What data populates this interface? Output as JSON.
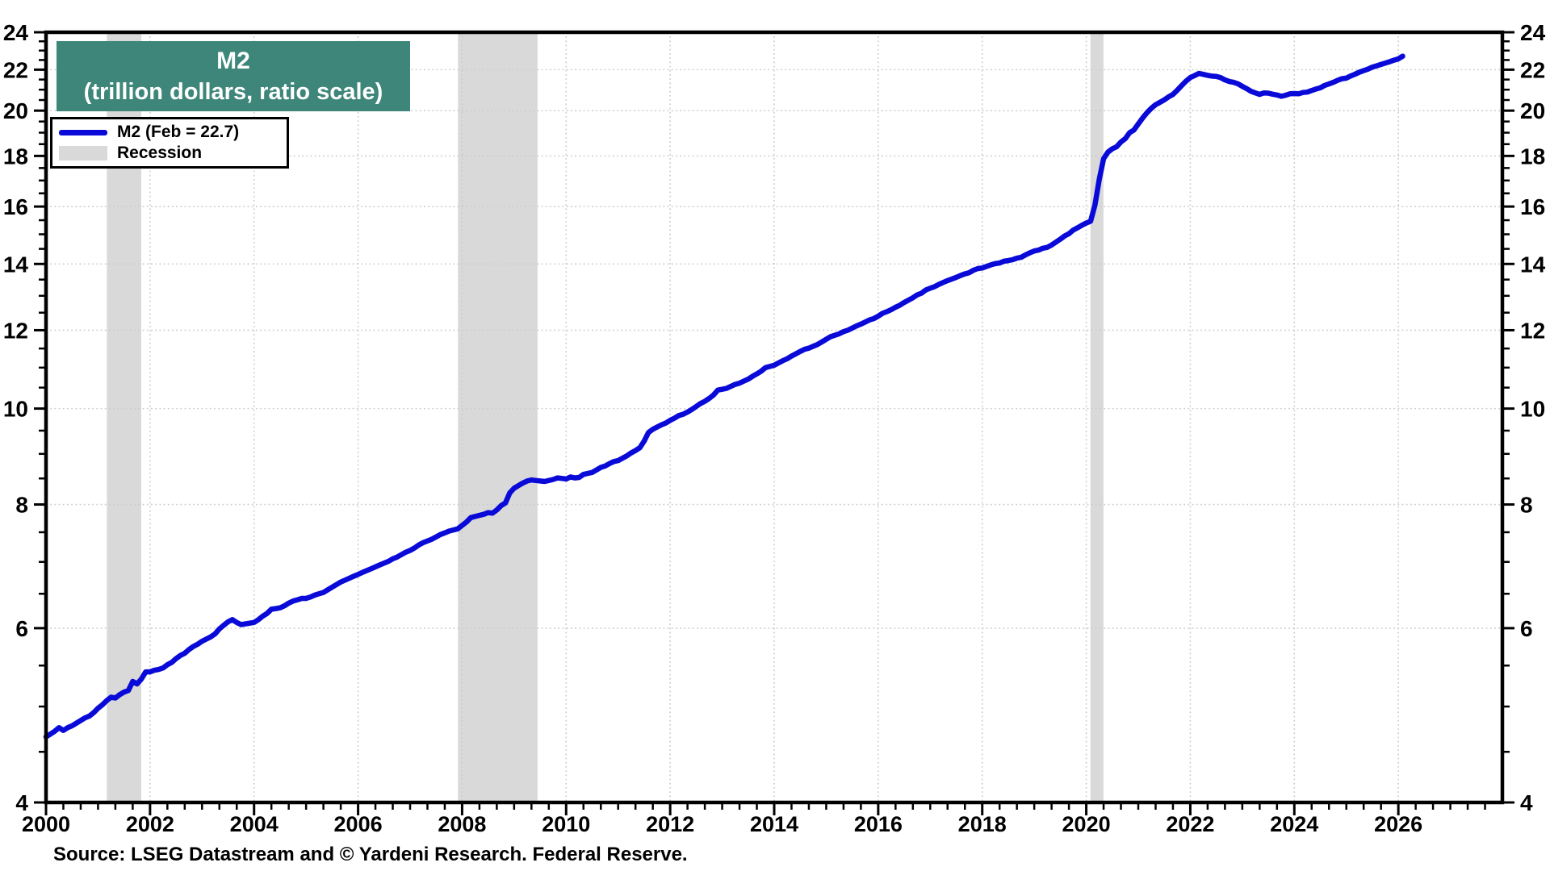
{
  "header": {
    "title": "M2",
    "subtitle": "(trillion dollars, ratio scale)"
  },
  "legend": {
    "items": [
      {
        "label": "M2 (Feb = 22.7)",
        "type": "line",
        "color": "#0a0ad8"
      },
      {
        "label": "Recession",
        "type": "box",
        "color": "#d9d9d9"
      }
    ]
  },
  "footer": {
    "source": "Source: LSEG Datastream and © Yardeni Research. Federal Reserve."
  },
  "theme": {
    "title_box_bg": "#3d8679",
    "line_color": "#0a0ad8",
    "recession_color": "#d9d9d9",
    "grid_color": "#cccccc",
    "axis_color": "#000000",
    "label_color": "#000000"
  },
  "chart_data": {
    "type": "line",
    "title": "M2 (trillion dollars, ratio scale)",
    "xlabel": "",
    "ylabel": "trillion dollars",
    "y_scale": "log",
    "x_range": [
      2000,
      2028
    ],
    "y_range": [
      4,
      24
    ],
    "x_tick_labels": [
      2000,
      2002,
      2004,
      2006,
      2008,
      2010,
      2012,
      2014,
      2016,
      2018,
      2020,
      2022,
      2024,
      2026
    ],
    "y_tick_labels": [
      4,
      6,
      8,
      10,
      12,
      14,
      16,
      18,
      20,
      22,
      24
    ],
    "gridlines_x": [
      2002,
      2004,
      2006,
      2008,
      2010,
      2012,
      2014,
      2016,
      2018,
      2020,
      2022,
      2024,
      2026
    ],
    "gridlines_y": [
      6,
      8,
      10,
      12,
      14,
      16,
      18,
      20,
      22
    ],
    "grid": "dotted",
    "legend_position": "top-left",
    "recessions": [
      [
        2001.17,
        2001.83
      ],
      [
        2007.92,
        2009.45
      ],
      [
        2020.08,
        2020.33
      ]
    ],
    "series": [
      {
        "name": "M2 (Feb = 22.7)",
        "unit": "trillion dollars",
        "latest_label": "Feb = 22.7",
        "monthly_by_year": {
          "2000": [
            4.66,
            4.69,
            4.72,
            4.76,
            4.73,
            4.76,
            4.78,
            4.81,
            4.84,
            4.87,
            4.89,
            4.93
          ],
          "2001": [
            4.98,
            5.02,
            5.07,
            5.11,
            5.1,
            5.14,
            5.17,
            5.19,
            5.3,
            5.27,
            5.33,
            5.42
          ],
          "2002": [
            5.42,
            5.44,
            5.45,
            5.47,
            5.51,
            5.54,
            5.59,
            5.63,
            5.66,
            5.71,
            5.75,
            5.78
          ],
          "2003": [
            5.82,
            5.85,
            5.88,
            5.92,
            5.99,
            6.04,
            6.09,
            6.12,
            6.08,
            6.05,
            6.06,
            6.07
          ],
          "2004": [
            6.08,
            6.12,
            6.17,
            6.21,
            6.27,
            6.28,
            6.29,
            6.32,
            6.36,
            6.39,
            6.41,
            6.43
          ],
          "2005": [
            6.43,
            6.45,
            6.48,
            6.5,
            6.52,
            6.56,
            6.6,
            6.64,
            6.68,
            6.71,
            6.74,
            6.77
          ],
          "2006": [
            6.8,
            6.83,
            6.86,
            6.89,
            6.92,
            6.95,
            6.98,
            7.01,
            7.05,
            7.08,
            7.12,
            7.16
          ],
          "2007": [
            7.19,
            7.23,
            7.28,
            7.32,
            7.35,
            7.38,
            7.42,
            7.46,
            7.49,
            7.52,
            7.54,
            7.56
          ],
          "2008": [
            7.62,
            7.68,
            7.76,
            7.78,
            7.8,
            7.82,
            7.85,
            7.84,
            7.9,
            7.98,
            8.03,
            8.22
          ],
          "2009": [
            8.31,
            8.36,
            8.41,
            8.45,
            8.47,
            8.46,
            8.45,
            8.44,
            8.46,
            8.48,
            8.51,
            8.5
          ],
          "2010": [
            8.49,
            8.53,
            8.51,
            8.52,
            8.58,
            8.6,
            8.62,
            8.67,
            8.72,
            8.75,
            8.8,
            8.84
          ],
          "2011": [
            8.86,
            8.91,
            8.96,
            9.02,
            9.07,
            9.13,
            9.27,
            9.46,
            9.53,
            9.58,
            9.63,
            9.67
          ],
          "2012": [
            9.73,
            9.78,
            9.84,
            9.87,
            9.92,
            9.98,
            10.05,
            10.12,
            10.17,
            10.24,
            10.32,
            10.44
          ],
          "2013": [
            10.46,
            10.48,
            10.53,
            10.58,
            10.61,
            10.66,
            10.71,
            10.78,
            10.84,
            10.91,
            11.0,
            11.03
          ],
          "2014": [
            11.06,
            11.12,
            11.18,
            11.23,
            11.3,
            11.36,
            11.42,
            11.48,
            11.51,
            11.56,
            11.61,
            11.68
          ],
          "2015": [
            11.75,
            11.82,
            11.86,
            11.9,
            11.96,
            12.0,
            12.06,
            12.12,
            12.17,
            12.23,
            12.29,
            12.33
          ],
          "2016": [
            12.4,
            12.48,
            12.53,
            12.59,
            12.66,
            12.72,
            12.8,
            12.87,
            12.94,
            13.03,
            13.08,
            13.18
          ],
          "2017": [
            13.23,
            13.28,
            13.35,
            13.41,
            13.47,
            13.52,
            13.57,
            13.63,
            13.68,
            13.72,
            13.8,
            13.85
          ],
          "2018": [
            13.87,
            13.92,
            13.97,
            14.01,
            14.03,
            14.09,
            14.11,
            14.14,
            14.19,
            14.22,
            14.3,
            14.37
          ],
          "2019": [
            14.43,
            14.46,
            14.52,
            14.55,
            14.63,
            14.73,
            14.83,
            14.94,
            15.02,
            15.15,
            15.23,
            15.32
          ],
          "2020": [
            15.4,
            15.46,
            16.05,
            17.05,
            17.88,
            18.16,
            18.3,
            18.39,
            18.59,
            18.74,
            19.0,
            19.12
          ],
          "2021": [
            19.39,
            19.66,
            19.9,
            20.11,
            20.28,
            20.39,
            20.51,
            20.65,
            20.77,
            20.97,
            21.2,
            21.42
          ],
          "2022": [
            21.6,
            21.7,
            21.81,
            21.76,
            21.71,
            21.67,
            21.66,
            21.6,
            21.48,
            21.4,
            21.36,
            21.29
          ],
          "2023": [
            21.16,
            21.05,
            20.92,
            20.84,
            20.77,
            20.84,
            20.83,
            20.78,
            20.74,
            20.68,
            20.73,
            20.8
          ],
          "2024": [
            20.81,
            20.8,
            20.86,
            20.88,
            20.96,
            21.03,
            21.09,
            21.21,
            21.28,
            21.36,
            21.46,
            21.54
          ],
          "2025": [
            21.57,
            21.68,
            21.77,
            21.87,
            21.95,
            22.03,
            22.13,
            22.2,
            22.27,
            22.34,
            22.41,
            22.49
          ],
          "2026": [
            22.56,
            22.7
          ]
        }
      }
    ]
  }
}
